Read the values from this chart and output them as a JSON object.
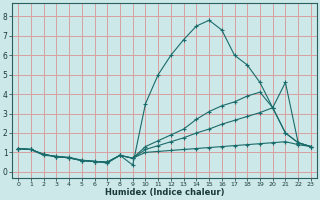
{
  "xlabel": "Humidex (Indice chaleur)",
  "bg_color": "#cce8e8",
  "grid_color": "#d9a0a0",
  "line_color": "#1a6b6b",
  "xlim": [
    -0.5,
    23.5
  ],
  "ylim": [
    -0.3,
    8.7
  ],
  "xticks": [
    0,
    1,
    2,
    3,
    4,
    5,
    6,
    7,
    8,
    9,
    10,
    11,
    12,
    13,
    14,
    15,
    16,
    17,
    18,
    19,
    20,
    21,
    22,
    23
  ],
  "yticks": [
    0,
    1,
    2,
    3,
    4,
    5,
    6,
    7,
    8
  ],
  "lines": [
    {
      "x": [
        0,
        1,
        2,
        3,
        4,
        5,
        6,
        7,
        8,
        9,
        10,
        11,
        12,
        13,
        14,
        15,
        16,
        17,
        18,
        19,
        20,
        21,
        22,
        23
      ],
      "y": [
        1.2,
        1.15,
        0.85,
        0.8,
        0.75,
        0.6,
        0.55,
        0.45,
        0.85,
        0.35,
        3.5,
        5.0,
        6.0,
        6.8,
        7.5,
        7.8,
        7.3,
        6.0,
        5.5,
        4.6,
        3.3,
        2.0,
        1.5,
        1.3
      ]
    },
    {
      "x": [
        0,
        1,
        2,
        3,
        4,
        5,
        6,
        7,
        8,
        9,
        10,
        11,
        12,
        13,
        14,
        15,
        16,
        17,
        18,
        19,
        20,
        21,
        22,
        23
      ],
      "y": [
        1.2,
        1.15,
        0.9,
        0.78,
        0.72,
        0.58,
        0.53,
        0.5,
        0.85,
        0.7,
        1.3,
        1.6,
        1.9,
        2.2,
        2.7,
        3.1,
        3.4,
        3.6,
        3.9,
        4.1,
        3.3,
        4.6,
        1.5,
        1.3
      ]
    },
    {
      "x": [
        0,
        1,
        2,
        3,
        4,
        5,
        6,
        7,
        8,
        9,
        10,
        11,
        12,
        13,
        14,
        15,
        16,
        17,
        18,
        19,
        20,
        21,
        22,
        23
      ],
      "y": [
        1.2,
        1.15,
        0.9,
        0.78,
        0.72,
        0.58,
        0.53,
        0.5,
        0.85,
        0.7,
        1.15,
        1.35,
        1.55,
        1.75,
        2.0,
        2.2,
        2.45,
        2.65,
        2.85,
        3.05,
        3.3,
        2.0,
        1.5,
        1.3
      ]
    },
    {
      "x": [
        0,
        1,
        2,
        3,
        4,
        5,
        6,
        7,
        8,
        9,
        10,
        11,
        12,
        13,
        14,
        15,
        16,
        17,
        18,
        19,
        20,
        21,
        22,
        23
      ],
      "y": [
        1.2,
        1.15,
        0.9,
        0.78,
        0.72,
        0.58,
        0.53,
        0.5,
        0.85,
        0.7,
        1.0,
        1.05,
        1.1,
        1.15,
        1.2,
        1.25,
        1.3,
        1.35,
        1.4,
        1.45,
        1.5,
        1.55,
        1.4,
        1.3
      ]
    }
  ]
}
